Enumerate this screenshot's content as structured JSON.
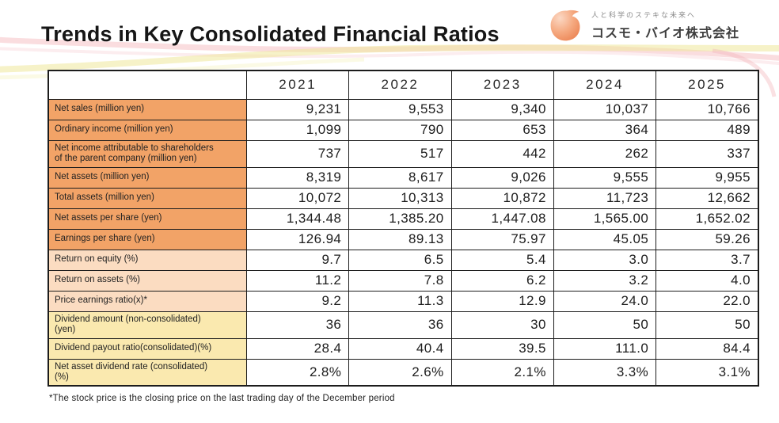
{
  "page": {
    "title": "Trends in Key Consolidated Financial Ratios",
    "footnote": "*The stock price is the closing price on the last trading day of the December period"
  },
  "logo": {
    "tagline": "人と科学のステキな未来へ",
    "company": "コスモ・バイオ株式会社",
    "mark": "cosmo-bio-drop-mark"
  },
  "colors": {
    "row_group_orange": "#F2A367",
    "row_group_peach": "#FBDCC1",
    "row_group_yellow": "#FAE9AF",
    "wave_pink": "#F3B3B8",
    "wave_yellow": "#EEE79A",
    "logo_orange": "#EF9066"
  },
  "table": {
    "columns": [
      "2021",
      "2022",
      "2023",
      "2024",
      "2025"
    ],
    "rows": [
      {
        "label": "Net sales (million yen)",
        "group": "orange",
        "tall": false,
        "values": [
          "9,231",
          "9,553",
          "9,340",
          "10,037",
          "10,766"
        ]
      },
      {
        "label": "Ordinary income (million yen)",
        "group": "orange",
        "tall": false,
        "values": [
          "1,099",
          "790",
          "653",
          "364",
          "489"
        ]
      },
      {
        "label": "Net income attributable to shareholders\nof the parent company (million yen)",
        "group": "orange",
        "tall": true,
        "values": [
          "737",
          "517",
          "442",
          "262",
          "337"
        ]
      },
      {
        "label": "Net assets (million yen)",
        "group": "orange",
        "tall": false,
        "values": [
          "8,319",
          "8,617",
          "9,026",
          "9,555",
          "9,955"
        ]
      },
      {
        "label": "Total assets (million yen)",
        "group": "orange",
        "tall": false,
        "values": [
          "10,072",
          "10,313",
          "10,872",
          "11,723",
          "12,662"
        ]
      },
      {
        "label": "Net assets per share  (yen)",
        "group": "orange",
        "tall": false,
        "values": [
          "1,344.48",
          "1,385.20",
          "1,447.08",
          "1,565.00",
          "1,652.02"
        ]
      },
      {
        "label": "Earnings per share (yen)",
        "group": "orange",
        "tall": false,
        "values": [
          "126.94",
          "89.13",
          "75.97",
          "45.05",
          "59.26"
        ]
      },
      {
        "label": "Return on equity (%)",
        "group": "peach",
        "tall": false,
        "values": [
          "9.7",
          "6.5",
          "5.4",
          "3.0",
          "3.7"
        ]
      },
      {
        "label": "Return on assets (%)",
        "group": "peach",
        "tall": false,
        "values": [
          "11.2",
          "7.8",
          "6.2",
          "3.2",
          "4.0"
        ]
      },
      {
        "label": "Price earnings ratio(x)*",
        "group": "peach",
        "tall": false,
        "values": [
          "9.2",
          "11.3",
          "12.9",
          "24.0",
          "22.0"
        ]
      },
      {
        "label": "Dividend amount (non-consolidated)\n(yen)",
        "group": "yellow",
        "tall": true,
        "values": [
          "36",
          "36",
          "30",
          "50",
          "50"
        ]
      },
      {
        "label": "Dividend payout ratio(consolidated)(%)",
        "group": "yellow",
        "tall": false,
        "values": [
          "28.4",
          "40.4",
          "39.5",
          "111.0",
          "84.4"
        ]
      },
      {
        "label": "Net asset dividend rate (consolidated)\n(%)",
        "group": "yellow",
        "tall": true,
        "values": [
          "2.8%",
          "2.6%",
          "2.1%",
          "3.3%",
          "3.1%"
        ]
      }
    ]
  }
}
